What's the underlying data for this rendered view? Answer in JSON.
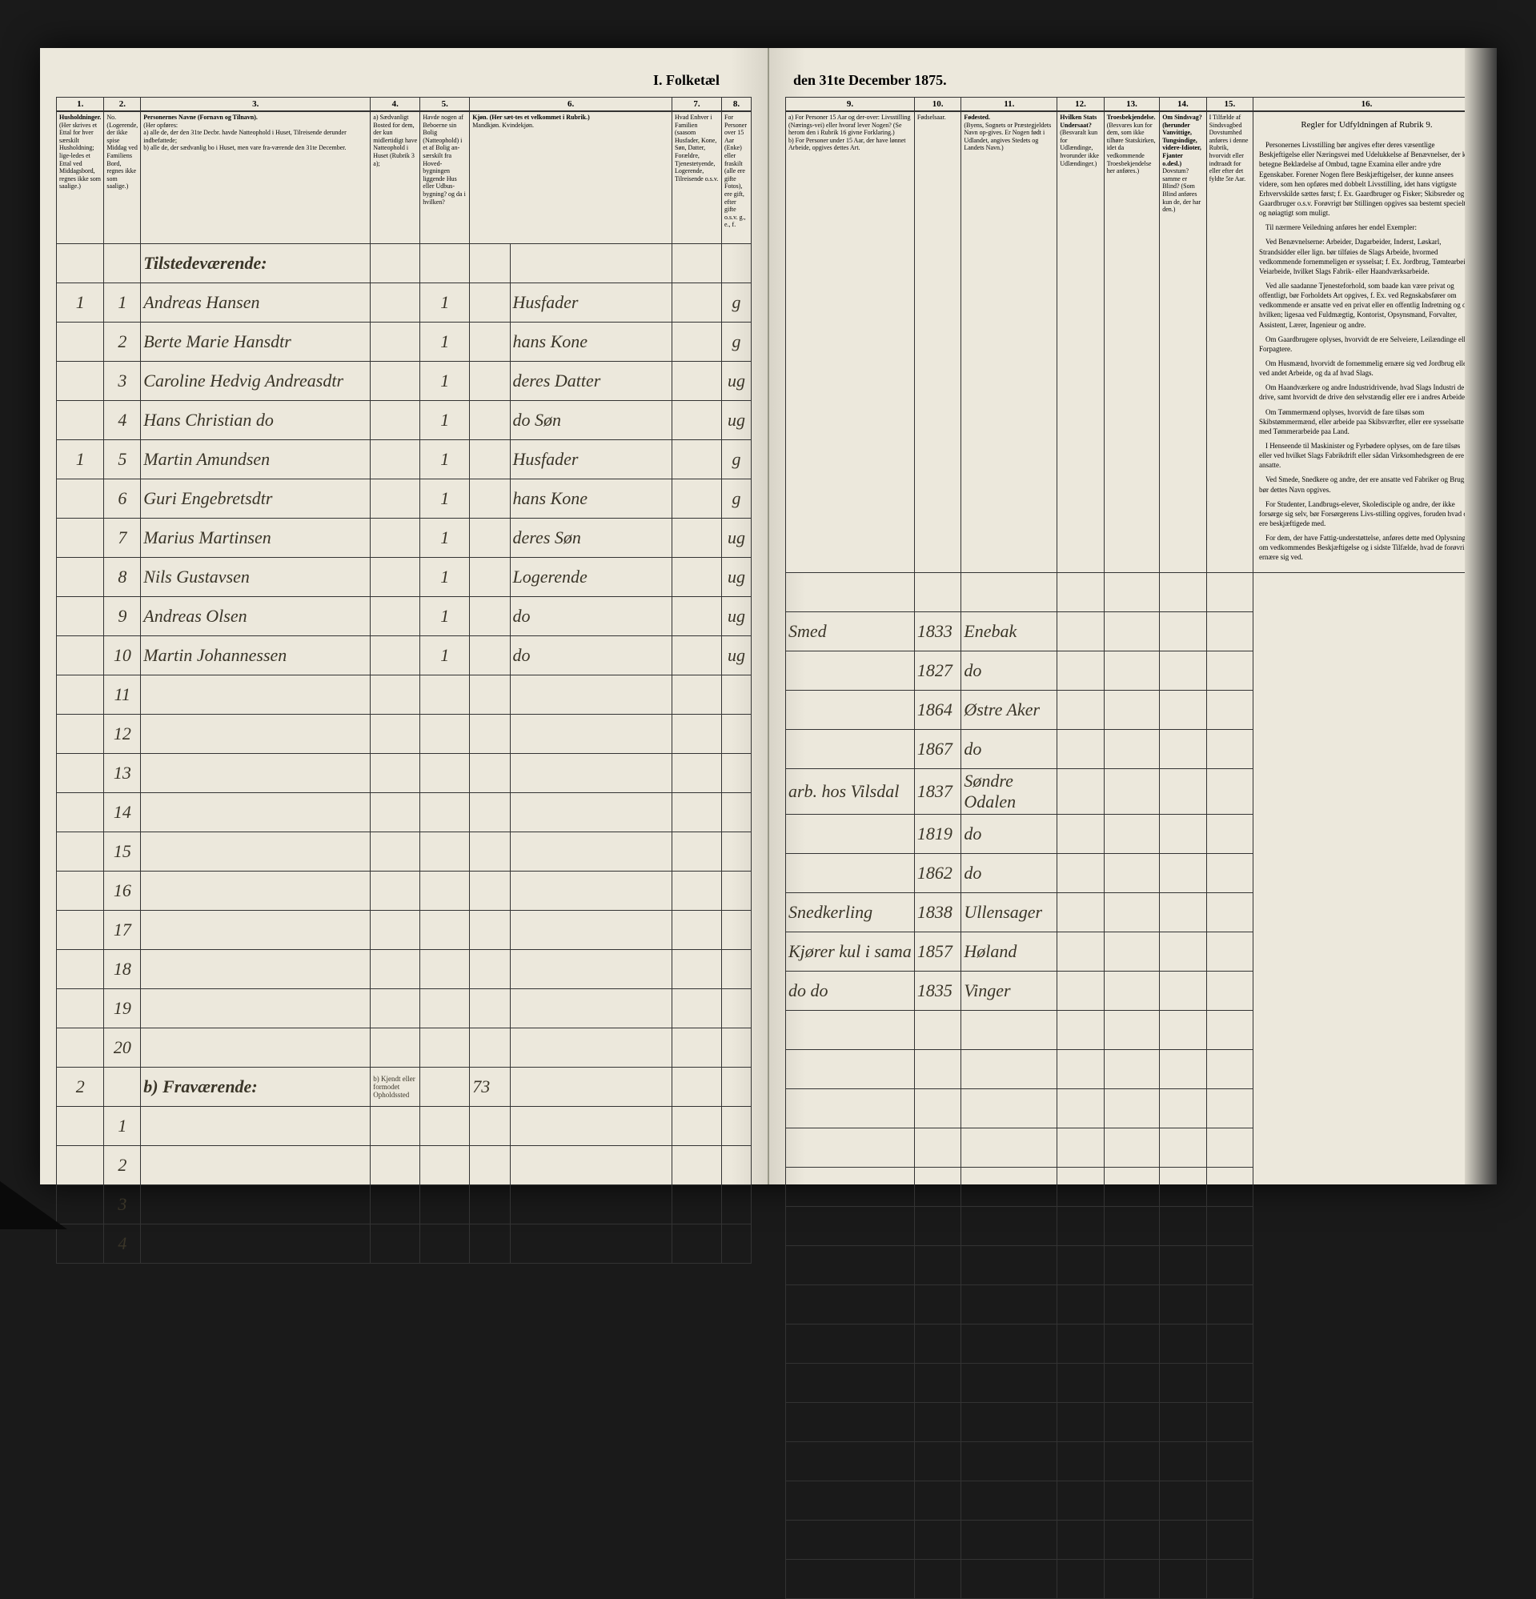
{
  "title_left": "I. Folketæl",
  "title_right": "den 31te December 1875.",
  "columns_left": [
    "1.",
    "2.",
    "3.",
    "4.",
    "5.",
    "6.",
    "7.",
    "8."
  ],
  "columns_right": [
    "9.",
    "10.",
    "11.",
    "12.",
    "13.",
    "14.",
    "15.",
    "16."
  ],
  "headers_left": {
    "c1": "Husholdninger.",
    "c1b": "(Her skrives et Ettal for hver særskilt Husholdning; lige-ledes et Ettal ved Middagsbord, regnes ikke som saalige.)",
    "c2": "No. (Logerende, der ikke spise Middag ved Familiens Bord, regnes ikke som saalige.)",
    "c3_title": "Personernes Navne (Fornavn og Tilnavn).",
    "c3_sub": "(Her opføres:",
    "c3_a": "a) alle de, der den 31te Decbr. havde Natteophold i Huset, Tilreisende derunder indbefattede;",
    "c3_b": "b) alle de, der sædvanlig bo i Huset, men vare fra-værende den 31te December.",
    "c4": "a) Sædvanligt Bosted for dem, der kun midlertidigt have Natteophold i Huset (Rubrik 3 a);",
    "c4b": "b) Kjendt eller formodet Opholdssted",
    "c5": "Havde nogen af Beboerne sin Bolig (Natteophold) i et af Bolig an-særskilt fra Hoved-bygningen liggende Hus eller Udbus-bygning? og da i hvilken?",
    "c6": "Kjøn. (Her sæt-tes et velkommet i Rubrik.)",
    "c6a": "Mandkjøn.",
    "c6b": "Kvindekjøn.",
    "c7": "Hvad Enhver i Familien (saasom Husfader, Kone, Søn, Datter, Forældre, Tjenestetyende, Logerende, Tilreisende o.s.v.",
    "c8": "For Personer over 15 Aar (Enke) eller fraskilt (alle ere gifte Fotos), ere gift, efter gifte o.s.v. g., e., f."
  },
  "headers_right": {
    "c9a": "a) For Personer 15 Aar og der-over: Livsstilling (Nærings-vei) eller hvoraf lever Nogen? (Se herom den i Rubrik 16 givne Forklaring.)",
    "c9b": "b) For Personer under 15 Aar, der have lønnet Arbeide, opgives dettes Art.",
    "c10": "Fødselsaar.",
    "c11": "Fødested.",
    "c11b": "(Byens, Sognets or Præstegjeldets Navn op-gives. Er Nogen født i Udlandet, angives Stedets og Landets Navn.)",
    "c12": "Hvilken Stats Undersaat?",
    "c12b": "(Besvaralt kun for Udlændinge, hvorunder ikke Udlændinger.)",
    "c13": "Troesbekjendelse.",
    "c13b": "(Besvares kun for dem, som ikke tilhøre Statskirken, idet da vedkommende Troesbekjendelse her anføres.)",
    "c14": "Om Sindsvag? (herunder Vanvittige, Tungsindige, videre-Idioter, Fjanter o.desl.)",
    "c14b": "Dovstum? samme er Blind? (Som Blind anføres kun de, der har den.)",
    "c15": "I Tilfælde af Sindsvagbed Dovstumhed anføres i denne Rubrik, hvorvidt eller indtraadt for eller efter det fyldte 5te Aar.",
    "c16": "Regler for Udfyldningen af Rubrik 9."
  },
  "section_a": "Tilstedeværende:",
  "section_b": "b) Fraværende:",
  "rows": [
    {
      "h": "1",
      "n": "1",
      "name": "Andreas Hansen",
      "c5": "1",
      "c7": "Husfader",
      "c8": "g",
      "c9": "Smed",
      "c10": "1833",
      "c11": "Enebak"
    },
    {
      "h": "",
      "n": "2",
      "name": "Berte Marie Hansdtr",
      "c5": "1",
      "c7": "hans Kone",
      "c8": "g",
      "c9": "",
      "c10": "1827",
      "c11": "do"
    },
    {
      "h": "",
      "n": "3",
      "name": "Caroline Hedvig Andreasdtr",
      "c5": "1",
      "c7": "deres Datter",
      "c8": "ug",
      "c9": "",
      "c10": "1864",
      "c11": "Østre Aker"
    },
    {
      "h": "",
      "n": "4",
      "name": "Hans Christian do",
      "c5": "1",
      "c7": "do Søn",
      "c8": "ug",
      "c9": "",
      "c10": "1867",
      "c11": "do"
    },
    {
      "h": "1",
      "n": "5",
      "name": "Martin Amundsen",
      "c5": "1",
      "c7": "Husfader",
      "c8": "g",
      "c9": "arb. hos Vilsdal",
      "c10": "1837",
      "c11": "Søndre Odalen"
    },
    {
      "h": "",
      "n": "6",
      "name": "Guri Engebretsdtr",
      "c5": "1",
      "c7": "hans Kone",
      "c8": "g",
      "c9": "",
      "c10": "1819",
      "c11": "do"
    },
    {
      "h": "",
      "n": "7",
      "name": "Marius Martinsen",
      "c5": "1",
      "c7": "deres Søn",
      "c8": "ug",
      "c9": "",
      "c10": "1862",
      "c11": "do"
    },
    {
      "h": "",
      "n": "8",
      "name": "Nils Gustavsen",
      "c5": "1",
      "c7": "Logerende",
      "c8": "ug",
      "c9": "Snedkerling",
      "c10": "1838",
      "c11": "Ullensager"
    },
    {
      "h": "",
      "n": "9",
      "name": "Andreas Olsen",
      "c5": "1",
      "c7": "do",
      "c8": "ug",
      "c9": "Kjører kul i sama",
      "c10": "1857",
      "c11": "Høland"
    },
    {
      "h": "",
      "n": "10",
      "name": "Martin Johannessen",
      "c5": "1",
      "c7": "do",
      "c8": "ug",
      "c9": "do   do",
      "c10": "1835",
      "c11": "Vinger"
    }
  ],
  "empty_rows_left": [
    "11",
    "12",
    "13",
    "14",
    "15",
    "16",
    "17",
    "18",
    "19",
    "20"
  ],
  "section_b_household": "2",
  "section_b_val": "73",
  "b_rows": [
    "1",
    "2",
    "3",
    "4"
  ],
  "instructions_title": "Regler for Udfyldningen af Rubrik 9.",
  "instructions": [
    "Personernes Livsstilling bør angives efter deres væsentlige Beskjeftigelse eller Næringsvei med Udelukkelse af Benævnelser, der kun betegne Beklædelse af Ombud, tagne Examina eller andre ydre Egenskaber. Forener Nogen flere Beskjæftigelser, der kunne ansees videre, som hen opføres med dobbelt Livsstilling, idet hans vigtigste Erhvervskilde sættes først; f. Ex. Gaardbruger og Fisker; Skibsreder og Gaardbruger o.s.v. Forøvrigt bør Stillingen opgives saa bestemt specielt og nøiagtigt som muligt.",
    "Til nærmere Veiledning anføres her endel Exempler:",
    "Ved Benævnelserne: Arbeider, Dagarbeider, Inderst, Løskarl, Strandsidder eller lign. bør tilføies de Slags Arbeide, hvormed vedkommende fornemmeligen er sysselsat; f. Ex. Jordbrug, Tømtearbeide, Veiarbeide, hvilket Slags Fabrik- eller Haandværksarbeide.",
    "Ved alle saadanne Tjenesteforhold, som baade kan være privat og offentligt, bør Forholdets Art opgives, f. Ex. ved Regnskabsfører om vedkommende er ansatte ved en privat eller en offentlig Indretning og da hvilken; ligesaa ved Fuldmægtig, Kontorist, Opsynsmand, Forvalter, Assistent, Lærer, Ingenieur og andre.",
    "Om Gaardbrugere oplyses, hvorvidt de ere Selveiere, Leilændinge eller Forpagtere.",
    "Om Husmænd, hvorvidt de fornemmelig ernære sig ved Jordbrug eller ved andet Arbeide, og da af hvad Slags.",
    "Om Haandværkere og andre Industridrivende, hvad Slags Industri de drive, samt hvorvidt de drive den selvstændig eller ere i andres Arbeide.",
    "Om Tømmermænd oplyses, hvorvidt de fare tilsøs som Skibstømmermænd, eller arbeide paa Skibsværfter, eller ere sysselsatte med Tømmerarbeide paa Land.",
    "I Henseende til Maskinister og Fyrbødere oplyses, om de fare tilsøs eller ved hvilket Slags Fabrikdrift eller sådan Virksomhedsgreen de ere ansatte.",
    "Ved Smede, Snedkere og andre, der ere ansatte ved Fabriker og Brug, bør dettes Navn opgives.",
    "For Studenter, Landbrugs-elever, Skoledisciple og andre, der ikke forsørge sig selv, bør Forsørgerens Livs-stilling opgives, foruden hvad de ere beskjæftigede med.",
    "For dem, der have Fattig-understøttelse, anføres dette med Oplysning om vedkommendes Beskjæftigelse og i sidste Tilfælde, hvad de forøvrigt ernære sig ved."
  ]
}
